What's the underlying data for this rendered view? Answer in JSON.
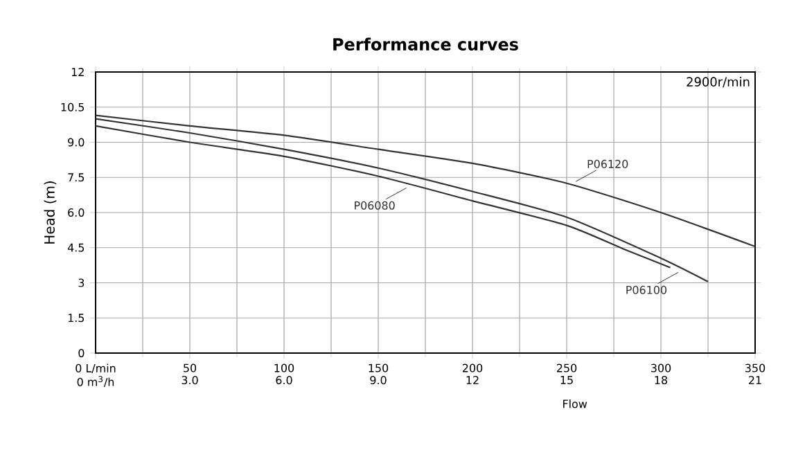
{
  "chart_data": {
    "type": "line",
    "title": "Performance curves",
    "xlabel": "Flow",
    "ylabel": "Head (m)",
    "annotations": [
      "2900r/min"
    ],
    "xlim": [
      0,
      350
    ],
    "ylim": [
      0,
      12
    ],
    "xticks": [
      {
        "value": 0,
        "label": "0 L/min"
      },
      50,
      100,
      150,
      200,
      250,
      300,
      350
    ],
    "yticks": [
      0,
      1.5,
      3,
      4.5,
      {
        "value": 6,
        "label": "6.0"
      },
      7.5,
      {
        "value": 9,
        "label": "9.0"
      },
      10.5,
      12
    ],
    "x2lim": [
      0,
      21
    ],
    "x2ticks": [
      {
        "value": 0,
        "label": "0 m$^{3}$/h"
      },
      {
        "value": 3,
        "label": "3.0"
      },
      {
        "value": 6,
        "label": "6.0"
      },
      {
        "value": 9,
        "label": "9.0"
      },
      12,
      15,
      18,
      21
    ],
    "grid": true,
    "marker": "none",
    "line_style": "solid",
    "series": [
      {
        "name": "P06120",
        "color": "#333333",
        "x": [
          0,
          50,
          100,
          150,
          200,
          250,
          300,
          350
        ],
        "values": [
          10.15,
          9.7,
          9.3,
          8.7,
          8.1,
          7.25,
          6.0,
          4.55
        ]
      },
      {
        "name": "P06080",
        "color": "#333333",
        "x": [
          0,
          50,
          100,
          150,
          200,
          250,
          280,
          305
        ],
        "values": [
          9.7,
          9.0,
          8.4,
          7.55,
          6.5,
          5.45,
          4.45,
          3.65
        ]
      },
      {
        "name": "P06100",
        "color": "#333333",
        "x": [
          0,
          50,
          100,
          150,
          200,
          250,
          300,
          325
        ],
        "values": [
          10.0,
          9.4,
          8.7,
          7.9,
          6.9,
          5.8,
          4.05,
          3.05
        ]
      }
    ]
  }
}
